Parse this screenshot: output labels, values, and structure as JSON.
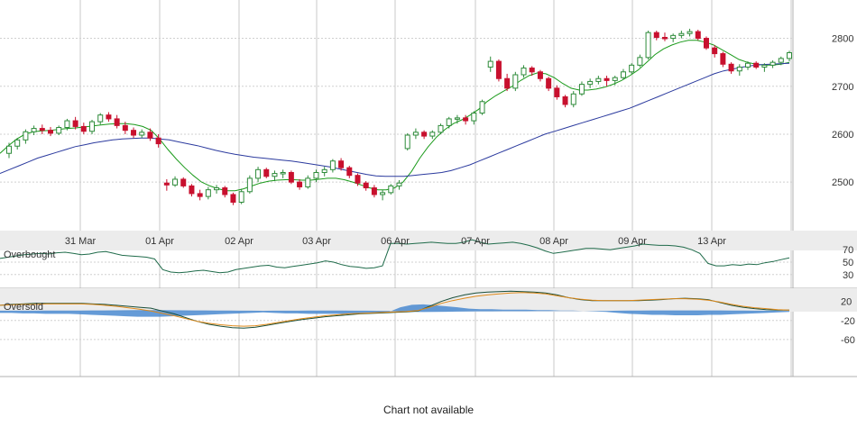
{
  "chart_data": [
    {
      "type": "candlestick",
      "title": "",
      "x_tick_labels": [
        "31 Mar",
        "01 Apr",
        "02 Apr",
        "03 Apr",
        "06 Apr",
        "07 Apr",
        "08 Apr",
        "09 Apr",
        "13 Apr"
      ],
      "y_ticks": [
        2500,
        2600,
        2700,
        2800
      ],
      "ylim": [
        2395,
        2880
      ],
      "grid": true,
      "up_color": "#2e8b3a",
      "down_color": "#c8102e",
      "candles": [
        [
          2560,
          2582,
          2550,
          2575
        ],
        [
          2575,
          2592,
          2568,
          2588
        ],
        [
          2588,
          2610,
          2580,
          2605
        ],
        [
          2605,
          2618,
          2598,
          2612
        ],
        [
          2612,
          2620,
          2600,
          2608
        ],
        [
          2608,
          2615,
          2596,
          2602
        ],
        [
          2602,
          2618,
          2598,
          2614
        ],
        [
          2614,
          2632,
          2608,
          2628
        ],
        [
          2628,
          2636,
          2610,
          2616
        ],
        [
          2616,
          2624,
          2600,
          2606
        ],
        [
          2606,
          2630,
          2600,
          2626
        ],
        [
          2626,
          2644,
          2620,
          2640
        ],
        [
          2640,
          2646,
          2626,
          2632
        ],
        [
          2632,
          2640,
          2612,
          2618
        ],
        [
          2618,
          2626,
          2600,
          2608
        ],
        [
          2608,
          2614,
          2592,
          2598
        ],
        [
          2598,
          2610,
          2592,
          2604
        ],
        [
          2604,
          2612,
          2586,
          2592
        ],
        [
          2592,
          2600,
          2572,
          2580
        ],
        [
          2498,
          2506,
          2482,
          2494
        ],
        [
          2494,
          2512,
          2490,
          2506
        ],
        [
          2506,
          2510,
          2488,
          2492
        ],
        [
          2492,
          2496,
          2470,
          2476
        ],
        [
          2476,
          2484,
          2462,
          2470
        ],
        [
          2470,
          2490,
          2464,
          2484
        ],
        [
          2484,
          2494,
          2476,
          2488
        ],
        [
          2488,
          2492,
          2468,
          2474
        ],
        [
          2474,
          2478,
          2452,
          2458
        ],
        [
          2458,
          2486,
          2454,
          2480
        ],
        [
          2480,
          2514,
          2476,
          2508
        ],
        [
          2508,
          2532,
          2500,
          2526
        ],
        [
          2526,
          2530,
          2508,
          2512
        ],
        [
          2512,
          2524,
          2502,
          2518
        ],
        [
          2518,
          2526,
          2508,
          2520
        ],
        [
          2520,
          2524,
          2496,
          2500
        ],
        [
          2500,
          2506,
          2484,
          2490
        ],
        [
          2490,
          2514,
          2486,
          2508
        ],
        [
          2508,
          2526,
          2500,
          2520
        ],
        [
          2520,
          2532,
          2512,
          2526
        ],
        [
          2526,
          2548,
          2520,
          2544
        ],
        [
          2544,
          2550,
          2524,
          2530
        ],
        [
          2530,
          2534,
          2508,
          2514
        ],
        [
          2514,
          2518,
          2492,
          2498
        ],
        [
          2498,
          2502,
          2482,
          2488
        ],
        [
          2488,
          2494,
          2468,
          2474
        ],
        [
          2474,
          2484,
          2462,
          2478
        ],
        [
          2478,
          2496,
          2474,
          2492
        ],
        [
          2492,
          2504,
          2484,
          2498
        ],
        [
          2570,
          2602,
          2566,
          2598
        ],
        [
          2598,
          2612,
          2590,
          2604
        ],
        [
          2604,
          2608,
          2590,
          2596
        ],
        [
          2596,
          2608,
          2590,
          2604
        ],
        [
          2604,
          2622,
          2600,
          2618
        ],
        [
          2618,
          2636,
          2612,
          2632
        ],
        [
          2632,
          2640,
          2622,
          2634
        ],
        [
          2634,
          2640,
          2620,
          2628
        ],
        [
          2628,
          2648,
          2620,
          2644
        ],
        [
          2644,
          2672,
          2640,
          2668
        ],
        [
          2740,
          2762,
          2730,
          2752
        ],
        [
          2752,
          2756,
          2710,
          2716
        ],
        [
          2716,
          2726,
          2690,
          2696
        ],
        [
          2696,
          2730,
          2690,
          2724
        ],
        [
          2724,
          2744,
          2718,
          2738
        ],
        [
          2738,
          2742,
          2722,
          2730
        ],
        [
          2730,
          2734,
          2710,
          2716
        ],
        [
          2716,
          2720,
          2690,
          2696
        ],
        [
          2696,
          2702,
          2672,
          2678
        ],
        [
          2678,
          2682,
          2656,
          2662
        ],
        [
          2662,
          2690,
          2656,
          2684
        ],
        [
          2684,
          2710,
          2680,
          2704
        ],
        [
          2704,
          2716,
          2696,
          2710
        ],
        [
          2710,
          2722,
          2704,
          2716
        ],
        [
          2716,
          2722,
          2700,
          2712
        ],
        [
          2712,
          2722,
          2702,
          2718
        ],
        [
          2718,
          2736,
          2714,
          2730
        ],
        [
          2730,
          2748,
          2726,
          2744
        ],
        [
          2744,
          2766,
          2740,
          2760
        ],
        [
          2760,
          2816,
          2756,
          2812
        ],
        [
          2812,
          2816,
          2796,
          2802
        ],
        [
          2802,
          2812,
          2794,
          2800
        ],
        [
          2800,
          2810,
          2792,
          2806
        ],
        [
          2806,
          2816,
          2800,
          2810
        ],
        [
          2810,
          2820,
          2804,
          2814
        ],
        [
          2814,
          2818,
          2796,
          2800
        ],
        [
          2800,
          2804,
          2776,
          2780
        ],
        [
          2780,
          2786,
          2760,
          2768
        ],
        [
          2768,
          2772,
          2740,
          2746
        ],
        [
          2746,
          2750,
          2726,
          2732
        ],
        [
          2732,
          2746,
          2722,
          2740
        ],
        [
          2740,
          2752,
          2734,
          2748
        ],
        [
          2748,
          2752,
          2736,
          2740
        ],
        [
          2740,
          2748,
          2730,
          2744
        ],
        [
          2744,
          2754,
          2738,
          2750
        ],
        [
          2750,
          2762,
          2744,
          2758
        ],
        [
          2758,
          2774,
          2752,
          2770
        ]
      ],
      "series": [
        {
          "color": "#1a9a1a",
          "values": [
            2560,
            2576,
            2590,
            2600,
            2605,
            2607,
            2608,
            2610,
            2612,
            2613,
            2615,
            2617,
            2619,
            2621,
            2622,
            2622,
            2620,
            2616,
            2608,
            2590,
            2568,
            2548,
            2530,
            2514,
            2500,
            2492,
            2486,
            2482,
            2482,
            2486,
            2492,
            2498,
            2502,
            2504,
            2505,
            2505,
            2504,
            2504,
            2506,
            2508,
            2508,
            2505,
            2500,
            2494,
            2488,
            2484,
            2484,
            2488,
            2500,
            2522,
            2550,
            2574,
            2594,
            2610,
            2622,
            2630,
            2640,
            2652,
            2668,
            2680,
            2690,
            2700,
            2712,
            2722,
            2728,
            2726,
            2718,
            2706,
            2696,
            2692,
            2692,
            2694,
            2698,
            2704,
            2712,
            2722,
            2734,
            2750,
            2766,
            2778,
            2786,
            2792,
            2796,
            2796,
            2792,
            2786,
            2776,
            2766,
            2756,
            2750,
            2746,
            2744,
            2744,
            2746,
            2750
          ]
        },
        {
          "color": "#2b3a9e",
          "values": [
            2518,
            2526,
            2534,
            2542,
            2550,
            2556,
            2562,
            2568,
            2574,
            2578,
            2582,
            2585,
            2588,
            2590,
            2591,
            2592,
            2592,
            2590,
            2588,
            2584,
            2580,
            2576,
            2571,
            2566,
            2562,
            2558,
            2555,
            2552,
            2550,
            2548,
            2546,
            2544,
            2541,
            2538,
            2535,
            2532,
            2528,
            2524,
            2520,
            2516,
            2513,
            2512,
            2512,
            2512,
            2514,
            2516,
            2518,
            2520,
            2524,
            2530,
            2536,
            2544,
            2552,
            2560,
            2568,
            2576,
            2584,
            2592,
            2600,
            2606,
            2612,
            2618,
            2624,
            2630,
            2636,
            2642,
            2648,
            2654,
            2662,
            2670,
            2678,
            2686,
            2694,
            2702,
            2710,
            2718,
            2726,
            2732,
            2736,
            2740,
            2743,
            2745,
            2746,
            2747,
            2748
          ]
        }
      ]
    },
    {
      "type": "line",
      "title": "",
      "upper_band_label": "Overbought",
      "y_ticks": [
        70,
        50,
        30
      ],
      "ylim": [
        8,
        92
      ],
      "overbought_band": [
        70,
        92
      ],
      "series": [
        {
          "color": "#1f6b4a",
          "values": [
            56,
            58,
            60,
            62,
            63,
            64,
            63,
            65,
            66,
            64,
            62,
            63,
            66,
            67,
            64,
            61,
            60,
            59,
            58,
            55,
            38,
            34,
            33,
            34,
            36,
            37,
            35,
            33,
            34,
            38,
            40,
            42,
            44,
            45,
            42,
            41,
            43,
            45,
            47,
            49,
            52,
            50,
            46,
            43,
            42,
            40,
            41,
            44,
            80,
            80,
            79,
            80,
            81,
            82,
            81,
            80,
            80,
            82,
            86,
            82,
            79,
            80,
            81,
            82,
            80,
            77,
            73,
            68,
            64,
            66,
            68,
            70,
            72,
            72,
            71,
            70,
            72,
            74,
            76,
            79,
            78,
            77,
            77,
            76,
            74,
            70,
            64,
            48,
            44,
            44,
            46,
            45,
            47,
            46,
            49,
            51,
            54,
            57
          ]
        }
      ]
    },
    {
      "type": "line",
      "title": "",
      "lower_band_label": "Oversold",
      "y_ticks": [
        20,
        -20,
        -60
      ],
      "ylim": [
        -85,
        48
      ],
      "series": [
        {
          "color": "#1a4f3a",
          "values": [
            12,
            14,
            15,
            16,
            16,
            16,
            16,
            16,
            15,
            14,
            12,
            10,
            8,
            6,
            0,
            -6,
            -14,
            -22,
            -28,
            -32,
            -35,
            -36,
            -34,
            -30,
            -26,
            -22,
            -18,
            -15,
            -12,
            -10,
            -8,
            -6,
            -5,
            -4,
            -3,
            -2,
            0,
            10,
            20,
            28,
            34,
            38,
            40,
            41,
            42,
            41,
            40,
            38,
            34,
            28,
            24,
            22,
            22,
            22,
            22,
            22,
            23,
            24,
            26,
            27,
            26,
            24,
            18,
            12,
            8,
            5,
            3,
            2,
            2
          ]
        },
        {
          "color": "#e08a1a",
          "values": [
            12,
            13,
            14,
            14,
            15,
            15,
            15,
            15,
            14,
            12,
            10,
            7,
            4,
            0,
            -5,
            -10,
            -16,
            -22,
            -26,
            -29,
            -31,
            -32,
            -31,
            -28,
            -24,
            -20,
            -16,
            -13,
            -10,
            -8,
            -6,
            -5,
            -4,
            -3,
            -2,
            -1,
            1,
            8,
            16,
            22,
            27,
            31,
            34,
            36,
            38,
            39,
            38,
            36,
            32,
            28,
            25,
            23,
            22,
            22,
            22,
            23,
            24,
            25,
            26,
            26,
            25,
            23,
            19,
            14,
            10,
            7,
            5,
            3,
            2
          ]
        },
        {
          "color": "#4a8ad0",
          "values": [
            -4,
            -4,
            -5,
            -5,
            -6,
            -6,
            -6,
            -7,
            -8,
            -9,
            -10,
            -11,
            -12,
            -12,
            -12,
            -11,
            -10,
            -9,
            -8,
            -7,
            -6,
            -5,
            -4,
            -3,
            -4,
            -5,
            -5,
            -6,
            -6,
            -6,
            -6,
            -5,
            -4,
            -3,
            -2,
            8,
            13,
            14,
            12,
            10,
            8,
            5,
            4,
            4,
            3,
            3,
            3,
            2,
            2,
            1,
            1,
            0,
            -1,
            -2,
            -4,
            -6,
            -7,
            -8,
            -8,
            -9,
            -9,
            -9,
            -8,
            -8,
            -7,
            -6,
            -5,
            -4,
            -3,
            -2
          ]
        }
      ]
    }
  ],
  "status_message": "Chart not available"
}
